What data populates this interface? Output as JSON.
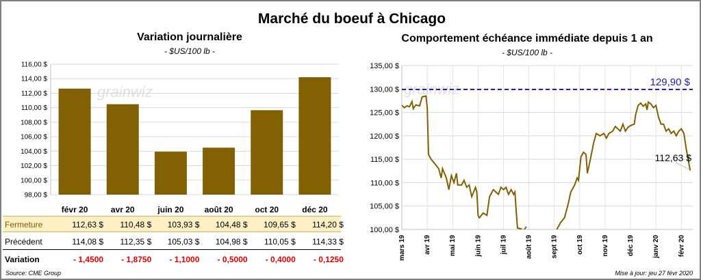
{
  "title": "Marché du boeuf à Chicago",
  "left_chart": {
    "title": "Variation  journalière",
    "subtitle": "- $US/100 lb -"
  },
  "right_chart": {
    "title": "Comportement  échéance immédiate depuis 1 an",
    "subtitle": "- $US/100 lb -"
  },
  "watermark": "grainwiz",
  "table": {
    "row_labels": {
      "close": "Fermeture",
      "previous": "Précédent",
      "variation": "Variation"
    },
    "close": [
      "112,63  $",
      "110,48  $",
      "103,93  $",
      "104,48  $",
      "109,65  $",
      "114,20  $"
    ],
    "previous": [
      "114,08  $",
      "112,35  $",
      "105,03  $",
      "104,98  $",
      "110,05  $",
      "114,33  $"
    ],
    "variation": [
      "- 1,4500",
      "- 1,8750",
      "- 1,1000",
      "- 0,5000",
      "- 0,4000",
      "- 0,1250"
    ]
  },
  "footer": {
    "source": "Source: CME Group",
    "updated": "Mise à jour: jeu 27 févr 2020"
  },
  "colors": {
    "bar": "#806000",
    "line": "#806000",
    "ref_line": "#1f1fa0",
    "ref_label": "#2020b0",
    "close_row_bg": "#fdf0c4",
    "variation_text": "#e00000"
  },
  "chart_data": [
    {
      "type": "bar",
      "categories": [
        "févr 20",
        "avr 20",
        "juin 20",
        "août 20",
        "oct 20",
        "déc 20"
      ],
      "values": [
        112.63,
        110.48,
        103.93,
        104.48,
        109.65,
        114.2
      ],
      "ylim": [
        98,
        116
      ],
      "yticks": [
        98,
        100,
        102,
        104,
        106,
        108,
        110,
        112,
        114,
        116
      ],
      "ytick_labels": [
        "98,00 $",
        "100,00 $",
        "102,00 $",
        "104,00 $",
        "106,00 $",
        "108,00 $",
        "110,00 $",
        "112,00 $",
        "114,00 $",
        "116,00 $"
      ],
      "grid": true
    },
    {
      "type": "line",
      "x_labels": [
        "mars 19",
        "avr 19",
        "mai 19",
        "juin 19",
        "juil 19",
        "août 19",
        "sept 19",
        "oct 19",
        "nov 19",
        "déc 19",
        "janv 20",
        "févr 20"
      ],
      "ylim": [
        100,
        135
      ],
      "yticks": [
        100,
        105,
        110,
        115,
        120,
        125,
        130,
        135
      ],
      "ytick_labels": [
        "100,00 $",
        "105,00 $",
        "110,00 $",
        "115,00 $",
        "120,00 $",
        "125,00 $",
        "130,00 $",
        "135,00 $"
      ],
      "grid": true,
      "reference_line": {
        "value": 129.9,
        "label": "129,90 $"
      },
      "last_value_label": "112,63 $",
      "series": [
        {
          "values": [
            [
              0.0,
              126.5
            ],
            [
              0.1,
              126.0
            ],
            [
              0.2,
              126.4
            ],
            [
              0.3,
              126.2
            ],
            [
              0.4,
              127.3
            ],
            [
              0.45,
              125.8
            ],
            [
              0.55,
              126.6
            ],
            [
              0.7,
              126.4
            ],
            [
              0.8,
              128.3
            ],
            [
              0.95,
              128.5
            ],
            [
              1.0,
              126.0
            ],
            [
              1.05,
              116.0
            ],
            [
              1.15,
              115.0
            ],
            [
              1.3,
              114.0
            ],
            [
              1.45,
              113.0
            ],
            [
              1.55,
              111.0
            ],
            [
              1.6,
              113.0
            ],
            [
              1.75,
              111.0
            ],
            [
              1.85,
              108.5
            ],
            [
              1.95,
              111.5
            ],
            [
              2.05,
              110.0
            ],
            [
              2.15,
              112.0
            ],
            [
              2.2,
              109.5
            ],
            [
              2.35,
              109.5
            ],
            [
              2.45,
              110.5
            ],
            [
              2.55,
              109.0
            ],
            [
              2.65,
              109.5
            ],
            [
              2.75,
              107.0
            ],
            [
              2.9,
              109.0
            ],
            [
              2.95,
              108.0
            ],
            [
              3.0,
              103.0
            ],
            [
              3.05,
              102.5
            ],
            [
              3.2,
              103.5
            ],
            [
              3.35,
              103.0
            ],
            [
              3.45,
              107.0
            ],
            [
              3.6,
              108.5
            ],
            [
              3.7,
              108.0
            ],
            [
              3.8,
              107.5
            ],
            [
              3.9,
              109.0
            ],
            [
              4.0,
              108.5
            ],
            [
              4.1,
              109.0
            ],
            [
              4.2,
              107.5
            ],
            [
              4.3,
              108.5
            ],
            [
              4.4,
              107.5
            ],
            [
              4.45,
              108.0
            ],
            [
              4.5,
              104.0
            ],
            [
              4.55,
              100.3
            ],
            [
              4.7,
              100.1
            ],
            [
              4.78,
              99.5
            ],
            [
              4.85,
              100.2
            ],
            [
              4.9,
              100.6
            ]
          ]
        },
        {
          "values": [
            [
              6.1,
              100.0
            ],
            [
              6.25,
              101.5
            ],
            [
              6.4,
              102.5
            ],
            [
              6.55,
              105.5
            ],
            [
              6.65,
              108.0
            ],
            [
              6.8,
              109.5
            ],
            [
              6.9,
              111.0
            ],
            [
              6.95,
              110.5
            ],
            [
              7.05,
              115.5
            ],
            [
              7.15,
              116.5
            ],
            [
              7.25,
              116.0
            ],
            [
              7.3,
              112.0
            ],
            [
              7.4,
              114.5
            ],
            [
              7.55,
              118.5
            ],
            [
              7.65,
              120.5
            ],
            [
              7.8,
              120.0
            ],
            [
              7.95,
              120.5
            ],
            [
              8.05,
              119.5
            ],
            [
              8.15,
              120.5
            ],
            [
              8.3,
              121.0
            ],
            [
              8.4,
              122.0
            ],
            [
              8.6,
              121.0
            ],
            [
              8.7,
              122.5
            ],
            [
              8.8,
              121.0
            ],
            [
              8.9,
              121.8
            ],
            [
              9.0,
              122.2
            ],
            [
              9.15,
              122.5
            ],
            [
              9.2,
              124.5
            ],
            [
              9.3,
              126.5
            ],
            [
              9.4,
              127.0
            ],
            [
              9.5,
              126.3
            ],
            [
              9.6,
              126.8
            ],
            [
              9.65,
              125.5
            ],
            [
              9.7,
              127.2
            ],
            [
              9.8,
              126.8
            ],
            [
              9.9,
              126.0
            ],
            [
              10.0,
              126.5
            ],
            [
              10.1,
              124.0
            ],
            [
              10.2,
              122.5
            ],
            [
              10.3,
              122.5
            ],
            [
              10.4,
              121.0
            ],
            [
              10.5,
              121.5
            ],
            [
              10.6,
              120.5
            ],
            [
              10.7,
              121.0
            ],
            [
              10.8,
              120.0
            ],
            [
              10.9,
              121.0
            ],
            [
              11.0,
              121.5
            ],
            [
              11.1,
              120.5
            ],
            [
              11.2,
              117.0
            ],
            [
              11.3,
              114.0
            ],
            [
              11.35,
              112.6
            ]
          ]
        }
      ]
    }
  ]
}
